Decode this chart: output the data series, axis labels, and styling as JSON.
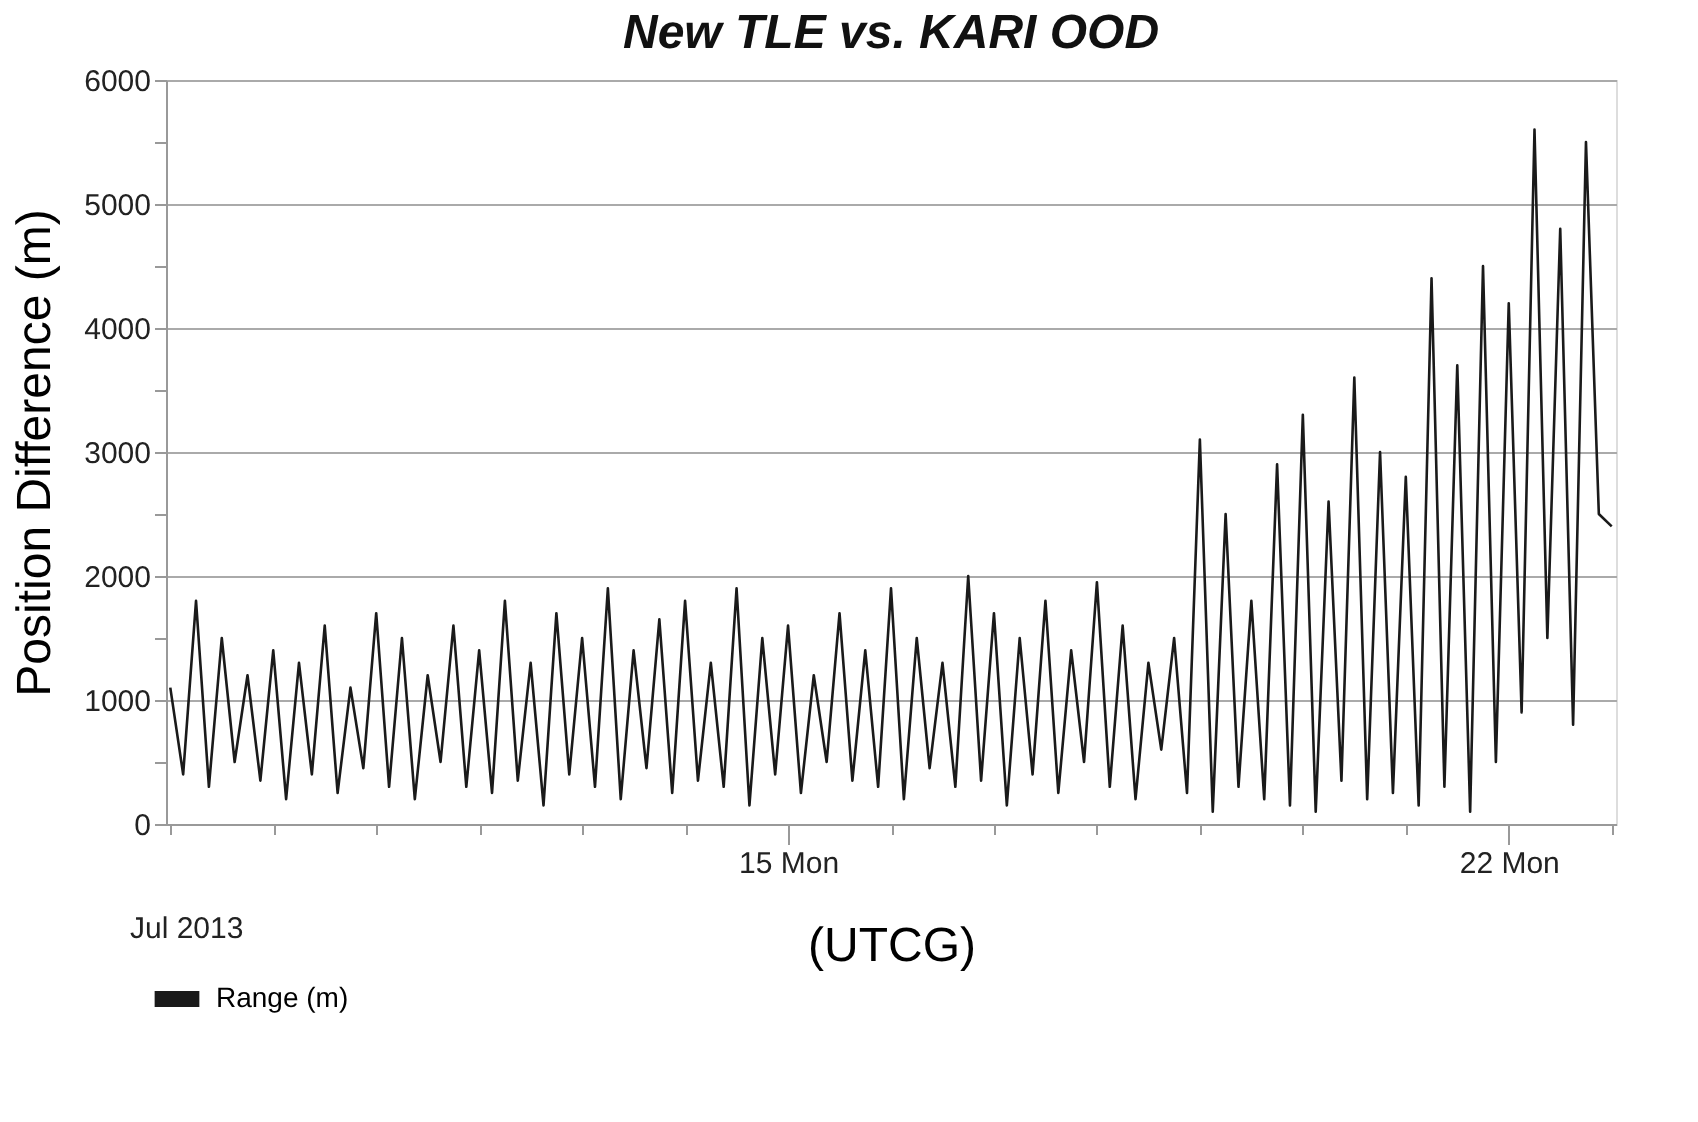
{
  "chart_data": {
    "type": "line",
    "title": "New TLE vs. KARI OOD",
    "xlabel": "(UTCG)",
    "ylabel": "Position Difference (m)",
    "annotations": [
      "Jul 2013"
    ],
    "xlim": [
      "2013-07-08T23:00",
      "2013-07-23T01:00"
    ],
    "xticks": [
      {
        "value": "2013-07-09",
        "label": null
      },
      {
        "value": "2013-07-10",
        "label": null
      },
      {
        "value": "2013-07-11",
        "label": null
      },
      {
        "value": "2013-07-12",
        "label": null
      },
      {
        "value": "2013-07-13",
        "label": null
      },
      {
        "value": "2013-07-14",
        "label": null
      },
      {
        "value": "2013-07-15",
        "label": "15 Mon"
      },
      {
        "value": "2013-07-16",
        "label": null
      },
      {
        "value": "2013-07-17",
        "label": null
      },
      {
        "value": "2013-07-18",
        "label": null
      },
      {
        "value": "2013-07-19",
        "label": null
      },
      {
        "value": "2013-07-20",
        "label": null
      },
      {
        "value": "2013-07-21",
        "label": null
      },
      {
        "value": "2013-07-22",
        "label": "22 Mon"
      },
      {
        "value": "2013-07-23",
        "label": null
      }
    ],
    "ylim": [
      0,
      6000
    ],
    "yticks": [
      0,
      {
        "value": 500,
        "label": null
      },
      1000,
      {
        "value": 1500,
        "label": null
      },
      2000,
      {
        "value": 2500,
        "label": null
      },
      3000,
      {
        "value": 3500,
        "label": null
      },
      4000,
      {
        "value": 4500,
        "label": null
      },
      5000,
      {
        "value": 5500,
        "label": null
      },
      6000
    ],
    "grid": "y",
    "legend": "bottom left",
    "marker": "none",
    "line_style": "solid",
    "x": [
      "2013-07-09T00:00",
      "2013-07-09T03:00",
      "2013-07-09T06:00",
      "2013-07-09T09:00",
      "2013-07-09T12:00",
      "2013-07-09T15:00",
      "2013-07-09T18:00",
      "2013-07-09T21:00",
      "2013-07-10T00:00",
      "2013-07-10T03:00",
      "2013-07-10T06:00",
      "2013-07-10T09:00",
      "2013-07-10T12:00",
      "2013-07-10T15:00",
      "2013-07-10T18:00",
      "2013-07-10T21:00",
      "2013-07-11T00:00",
      "2013-07-11T03:00",
      "2013-07-11T06:00",
      "2013-07-11T09:00",
      "2013-07-11T12:00",
      "2013-07-11T15:00",
      "2013-07-11T18:00",
      "2013-07-11T21:00",
      "2013-07-12T00:00",
      "2013-07-12T03:00",
      "2013-07-12T06:00",
      "2013-07-12T09:00",
      "2013-07-12T12:00",
      "2013-07-12T15:00",
      "2013-07-12T18:00",
      "2013-07-12T21:00",
      "2013-07-13T00:00",
      "2013-07-13T03:00",
      "2013-07-13T06:00",
      "2013-07-13T09:00",
      "2013-07-13T12:00",
      "2013-07-13T15:00",
      "2013-07-13T18:00",
      "2013-07-13T21:00",
      "2013-07-14T00:00",
      "2013-07-14T03:00",
      "2013-07-14T06:00",
      "2013-07-14T09:00",
      "2013-07-14T12:00",
      "2013-07-14T15:00",
      "2013-07-14T18:00",
      "2013-07-14T21:00",
      "2013-07-15T00:00",
      "2013-07-15T03:00",
      "2013-07-15T06:00",
      "2013-07-15T09:00",
      "2013-07-15T12:00",
      "2013-07-15T15:00",
      "2013-07-15T18:00",
      "2013-07-15T21:00",
      "2013-07-16T00:00",
      "2013-07-16T03:00",
      "2013-07-16T06:00",
      "2013-07-16T09:00",
      "2013-07-16T12:00",
      "2013-07-16T15:00",
      "2013-07-16T18:00",
      "2013-07-16T21:00",
      "2013-07-17T00:00",
      "2013-07-17T03:00",
      "2013-07-17T06:00",
      "2013-07-17T09:00",
      "2013-07-17T12:00",
      "2013-07-17T15:00",
      "2013-07-17T18:00",
      "2013-07-17T21:00",
      "2013-07-18T00:00",
      "2013-07-18T03:00",
      "2013-07-18T06:00",
      "2013-07-18T09:00",
      "2013-07-18T12:00",
      "2013-07-18T15:00",
      "2013-07-18T18:00",
      "2013-07-18T21:00",
      "2013-07-19T00:00",
      "2013-07-19T03:00",
      "2013-07-19T06:00",
      "2013-07-19T09:00",
      "2013-07-19T12:00",
      "2013-07-19T15:00",
      "2013-07-19T18:00",
      "2013-07-19T21:00",
      "2013-07-20T00:00",
      "2013-07-20T03:00",
      "2013-07-20T06:00",
      "2013-07-20T09:00",
      "2013-07-20T12:00",
      "2013-07-20T15:00",
      "2013-07-20T18:00",
      "2013-07-20T21:00",
      "2013-07-21T00:00",
      "2013-07-21T03:00",
      "2013-07-21T06:00",
      "2013-07-21T09:00",
      "2013-07-21T12:00",
      "2013-07-21T15:00",
      "2013-07-21T18:00",
      "2013-07-21T21:00",
      "2013-07-22T00:00",
      "2013-07-22T03:00",
      "2013-07-22T06:00",
      "2013-07-22T09:00",
      "2013-07-22T12:00",
      "2013-07-22T15:00",
      "2013-07-22T18:00",
      "2013-07-22T21:00",
      "2013-07-23T00:00"
    ],
    "series": [
      {
        "name": "Range (m)",
        "color": "#1a1a1a",
        "values": [
          1100,
          400,
          1800,
          300,
          1500,
          500,
          1200,
          350,
          1400,
          200,
          1300,
          400,
          1600,
          250,
          1100,
          450,
          1700,
          300,
          1500,
          200,
          1200,
          500,
          1600,
          300,
          1400,
          250,
          1800,
          350,
          1300,
          150,
          1700,
          400,
          1500,
          300,
          1900,
          200,
          1400,
          450,
          1650,
          250,
          1800,
          350,
          1300,
          300,
          1900,
          150,
          1500,
          400,
          1600,
          250,
          1200,
          500,
          1700,
          350,
          1400,
          300,
          1900,
          200,
          1500,
          450,
          1300,
          300,
          2000,
          350,
          1700,
          150,
          1500,
          400,
          1800,
          250,
          1400,
          500,
          1950,
          300,
          1600,
          200,
          1300,
          600,
          1500,
          250,
          3100,
          100,
          2500,
          300,
          1800,
          200,
          2900,
          150,
          3300,
          100,
          2600,
          350,
          3600,
          200,
          3000,
          250,
          2800,
          150,
          4400,
          300,
          3700,
          100,
          4500,
          500,
          4200,
          900,
          5600,
          1500,
          4800,
          800,
          5500,
          2500,
          2400
        ]
      }
    ]
  }
}
